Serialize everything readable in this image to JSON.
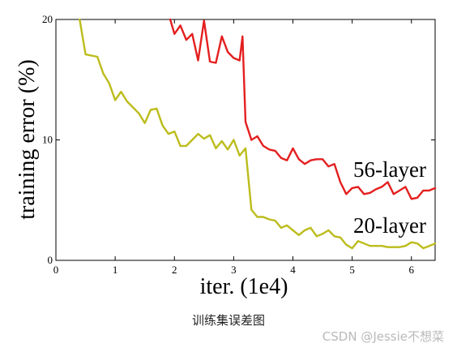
{
  "chart_data": {
    "type": "line",
    "xlabel": "iter. (1e4)",
    "ylabel": "training error (%)",
    "xlim": [
      0,
      6.4
    ],
    "ylim": [
      0,
      20
    ],
    "xticks": [
      0,
      1,
      2,
      3,
      4,
      5,
      6
    ],
    "yticks": [
      0,
      10,
      20
    ],
    "grid": false,
    "series": [
      {
        "name": "56-layer",
        "color": "#e41f1f",
        "x": [
          1.93,
          2.0,
          2.1,
          2.2,
          2.3,
          2.4,
          2.5,
          2.6,
          2.7,
          2.8,
          2.9,
          3.0,
          3.1,
          3.15,
          3.2,
          3.3,
          3.4,
          3.5,
          3.6,
          3.7,
          3.8,
          3.9,
          4.0,
          4.1,
          4.2,
          4.3,
          4.4,
          4.5,
          4.6,
          4.7,
          4.8,
          4.9,
          5.0,
          5.1,
          5.2,
          5.3,
          5.4,
          5.5,
          5.6,
          5.7,
          5.8,
          5.9,
          6.0,
          6.1,
          6.2,
          6.3,
          6.4
        ],
        "values": [
          20.0,
          18.8,
          19.5,
          18.3,
          18.8,
          16.6,
          19.9,
          16.5,
          16.4,
          18.6,
          17.3,
          16.8,
          16.6,
          18.6,
          11.5,
          10.0,
          10.3,
          9.5,
          9.2,
          9.1,
          8.5,
          8.3,
          9.3,
          8.4,
          8.0,
          8.3,
          8.4,
          8.4,
          7.8,
          8.0,
          6.5,
          5.5,
          6.0,
          6.1,
          5.5,
          5.6,
          5.9,
          6.1,
          6.5,
          5.5,
          5.8,
          6.1,
          5.1,
          5.2,
          5.8,
          5.8,
          6.0
        ]
      },
      {
        "name": "20-layer",
        "color": "#bcbc1c",
        "x": [
          0.4,
          0.5,
          0.7,
          0.8,
          0.9,
          1.0,
          1.1,
          1.2,
          1.3,
          1.4,
          1.5,
          1.6,
          1.7,
          1.8,
          1.9,
          2.0,
          2.1,
          2.2,
          2.3,
          2.4,
          2.5,
          2.6,
          2.7,
          2.8,
          2.9,
          3.0,
          3.1,
          3.2,
          3.3,
          3.4,
          3.5,
          3.6,
          3.7,
          3.8,
          3.9,
          4.0,
          4.1,
          4.2,
          4.3,
          4.4,
          4.5,
          4.6,
          4.7,
          4.8,
          4.9,
          5.0,
          5.1,
          5.2,
          5.3,
          5.4,
          5.5,
          5.6,
          5.7,
          5.8,
          5.9,
          6.0,
          6.1,
          6.2,
          6.3,
          6.4
        ],
        "values": [
          20.0,
          17.1,
          16.9,
          15.5,
          14.7,
          13.3,
          14.0,
          13.2,
          12.7,
          12.2,
          11.4,
          12.5,
          12.6,
          11.2,
          10.5,
          10.7,
          9.5,
          9.5,
          10.0,
          10.5,
          10.1,
          10.4,
          9.3,
          9.9,
          9.2,
          10.0,
          8.7,
          9.3,
          4.2,
          3.6,
          3.6,
          3.4,
          3.3,
          2.7,
          2.9,
          2.5,
          2.1,
          2.5,
          2.7,
          2.0,
          2.2,
          2.5,
          2.0,
          1.9,
          1.3,
          1.0,
          1.6,
          1.4,
          1.2,
          1.2,
          1.2,
          1.1,
          1.1,
          1.1,
          1.2,
          1.5,
          1.4,
          1.0,
          1.2,
          1.4
        ]
      }
    ]
  },
  "caption": "训练集误差图",
  "watermark": "CSDN @Jessie不想菜"
}
